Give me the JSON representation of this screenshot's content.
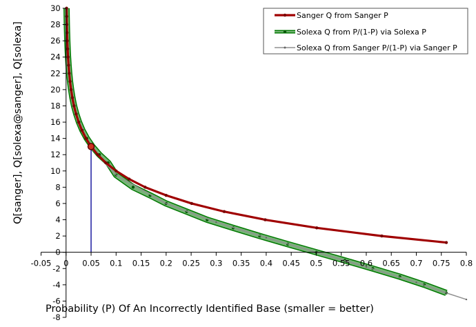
{
  "chart_data": {
    "type": "line",
    "title": "",
    "xlabel": "Probability (P) Of An Incorrectly Identified Base (smaller = better)",
    "ylabel": "Q[sanger], Q[solexa@sanger], Q[solexa]",
    "xlim": [
      -0.05,
      0.8
    ],
    "ylim": [
      -8,
      30
    ],
    "x_ticks": [
      "-0.05",
      "0",
      "0.05",
      "0.1",
      "0.15",
      "0.2",
      "0.25",
      "0.3",
      "0.35",
      "0.4",
      "0.45",
      "0.5",
      "0.55",
      "0.6",
      "0.65",
      "0.7",
      "0.75",
      "0.8"
    ],
    "y_ticks": [
      "-8",
      "-6",
      "-4",
      "-2",
      "0",
      "2",
      "4",
      "6",
      "8",
      "10",
      "12",
      "14",
      "16",
      "18",
      "20",
      "22",
      "24",
      "26",
      "28",
      "30"
    ],
    "grid": false,
    "legend_position": "top-right",
    "series": [
      {
        "name": "Sanger Q from Sanger P",
        "color": "#a00000",
        "x": [
          0.001,
          0.00126,
          0.00158,
          0.002,
          0.00251,
          0.00316,
          0.00398,
          0.00501,
          0.00631,
          0.00794,
          0.01,
          0.0126,
          0.0158,
          0.02,
          0.0251,
          0.0316,
          0.0398,
          0.0501,
          0.0631,
          0.0794,
          0.1,
          0.126,
          0.158,
          0.2,
          0.251,
          0.316,
          0.398,
          0.501,
          0.631,
          0.76
        ],
        "y": [
          30,
          29,
          28,
          27,
          26,
          25,
          24,
          23,
          22,
          21,
          20,
          19,
          18,
          17,
          16,
          15,
          14,
          13,
          12,
          11,
          10,
          9,
          8,
          7,
          6,
          5,
          4,
          3,
          2,
          1.2
        ]
      },
      {
        "name": "Solexa Q from P/(1-P) via Solexa P",
        "color": "#007a00",
        "x": [
          0.001,
          0.00126,
          0.00158,
          0.002,
          0.00251,
          0.00316,
          0.00398,
          0.00502,
          0.00632,
          0.00796,
          0.0101,
          0.0127,
          0.016,
          0.0204,
          0.0258,
          0.0327,
          0.0415,
          0.0526,
          0.0666,
          0.0842,
          0.1,
          0.134,
          0.168,
          0.2,
          0.241,
          0.282,
          0.334,
          0.387,
          0.443,
          0.5,
          0.557,
          0.613,
          0.667,
          0.716,
          0.76
        ],
        "y": [
          30,
          29,
          28,
          27,
          26,
          25,
          24,
          23,
          22,
          21,
          20,
          19,
          18,
          17,
          16,
          15,
          14,
          13,
          12,
          11,
          9.5,
          8,
          7,
          6,
          5,
          4,
          3,
          2,
          1,
          0,
          -1,
          -2,
          -3,
          -4,
          -5
        ]
      },
      {
        "name": "Solexa Q from Sanger P/(1-P) via Sanger P",
        "color": "#909090",
        "x": [
          0.001,
          0.002,
          0.005,
          0.01,
          0.02,
          0.05,
          0.1,
          0.2,
          0.3,
          0.4,
          0.5,
          0.6,
          0.7,
          0.76,
          0.8
        ],
        "y": [
          30,
          27,
          23,
          20,
          16.9,
          12.8,
          9.5,
          6,
          3.7,
          1.8,
          0,
          -1.8,
          -3.7,
          -5,
          -5.8
        ]
      }
    ],
    "highlight_point": {
      "x": 0.05,
      "y": 13
    }
  }
}
